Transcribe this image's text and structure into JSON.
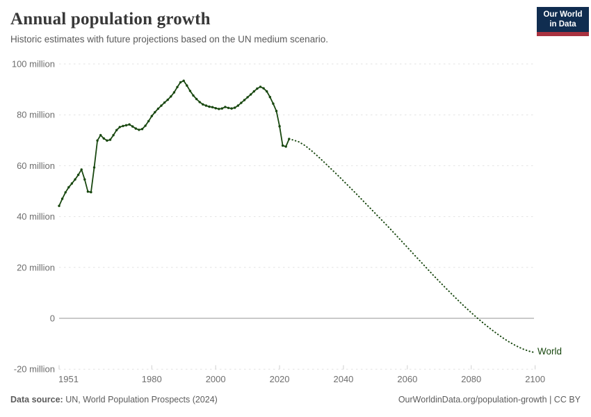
{
  "header": {
    "title": "Annual population growth",
    "subtitle": "Historic estimates with future projections based on the UN medium scenario."
  },
  "logo": {
    "line1": "Our World",
    "line2": "in Data",
    "bg_color": "#102d50",
    "bar_color": "#a93240"
  },
  "footer": {
    "source_label": "Data source:",
    "source_text": " UN, World Population Prospects (2024)",
    "link_text": "OurWorldinData.org/population-growth | CC BY"
  },
  "chart_data": {
    "type": "line",
    "title": "Annual population growth",
    "series_name": "World",
    "unit": "million",
    "line_color": "#18470f",
    "grid_color": "#e2e2e2",
    "zero_line_color": "#b8b8b8",
    "axis_text_color": "#6e6e6e",
    "xlim": [
      1951,
      2100
    ],
    "ylim": [
      -20,
      100
    ],
    "legend_position": "end-of-line",
    "grid": "horizontal-dashed",
    "yticks": [
      {
        "v": 100,
        "label": "100 million"
      },
      {
        "v": 80,
        "label": "80 million"
      },
      {
        "v": 60,
        "label": "60 million"
      },
      {
        "v": 40,
        "label": "40 million"
      },
      {
        "v": 20,
        "label": "20 million"
      },
      {
        "v": 0,
        "label": "0"
      },
      {
        "v": -20,
        "label": "-20 million"
      }
    ],
    "xticks": [
      {
        "year": 1951,
        "label": "1951",
        "align": "start"
      },
      {
        "year": 1980,
        "label": "1980"
      },
      {
        "year": 2000,
        "label": "2000"
      },
      {
        "year": 2020,
        "label": "2020"
      },
      {
        "year": 2040,
        "label": "2040"
      },
      {
        "year": 2060,
        "label": "2060"
      },
      {
        "year": 2080,
        "label": "2080"
      },
      {
        "year": 2100,
        "label": "2100"
      }
    ],
    "historic_style": "solid-with-markers",
    "projection_style": "dotted",
    "historic_points": [
      [
        1951,
        44.2
      ],
      [
        1952,
        47.0
      ],
      [
        1953,
        49.5
      ],
      [
        1954,
        51.5
      ],
      [
        1955,
        53.0
      ],
      [
        1956,
        54.6
      ],
      [
        1957,
        56.4
      ],
      [
        1958,
        58.5
      ],
      [
        1959,
        54.6
      ],
      [
        1960,
        49.8
      ],
      [
        1961,
        49.6
      ],
      [
        1962,
        59.3
      ],
      [
        1963,
        69.9
      ],
      [
        1964,
        72.0
      ],
      [
        1965,
        70.7
      ],
      [
        1966,
        69.9
      ],
      [
        1967,
        70.2
      ],
      [
        1968,
        72.0
      ],
      [
        1969,
        74.0
      ],
      [
        1970,
        75.2
      ],
      [
        1971,
        75.6
      ],
      [
        1972,
        75.9
      ],
      [
        1973,
        76.2
      ],
      [
        1974,
        75.4
      ],
      [
        1975,
        74.6
      ],
      [
        1976,
        74.1
      ],
      [
        1977,
        74.4
      ],
      [
        1978,
        75.7
      ],
      [
        1979,
        77.5
      ],
      [
        1980,
        79.5
      ],
      [
        1981,
        81.0
      ],
      [
        1982,
        82.4
      ],
      [
        1983,
        83.6
      ],
      [
        1984,
        84.8
      ],
      [
        1985,
        85.9
      ],
      [
        1986,
        87.2
      ],
      [
        1987,
        88.8
      ],
      [
        1988,
        90.9
      ],
      [
        1989,
        92.8
      ],
      [
        1990,
        93.4
      ],
      [
        1991,
        91.5
      ],
      [
        1992,
        89.4
      ],
      [
        1993,
        87.6
      ],
      [
        1994,
        86.2
      ],
      [
        1995,
        85.0
      ],
      [
        1996,
        84.1
      ],
      [
        1997,
        83.6
      ],
      [
        1998,
        83.2
      ],
      [
        1999,
        83.0
      ],
      [
        2000,
        82.6
      ],
      [
        2001,
        82.3
      ],
      [
        2002,
        82.5
      ],
      [
        2003,
        83.1
      ],
      [
        2004,
        82.7
      ],
      [
        2005,
        82.5
      ],
      [
        2006,
        82.8
      ],
      [
        2007,
        83.6
      ],
      [
        2008,
        84.7
      ],
      [
        2009,
        85.8
      ],
      [
        2010,
        86.9
      ],
      [
        2011,
        88.0
      ],
      [
        2012,
        89.2
      ],
      [
        2013,
        90.3
      ],
      [
        2014,
        91.0
      ],
      [
        2015,
        90.4
      ],
      [
        2016,
        89.2
      ],
      [
        2017,
        87.0
      ],
      [
        2018,
        84.4
      ],
      [
        2019,
        81.5
      ],
      [
        2020,
        75.5
      ],
      [
        2021,
        67.9
      ],
      [
        2022,
        67.5
      ],
      [
        2023,
        70.5
      ]
    ],
    "projection_points": [
      [
        2024,
        70.2
      ],
      [
        2026,
        69.4
      ],
      [
        2028,
        67.9
      ],
      [
        2030,
        65.9
      ],
      [
        2032,
        63.7
      ],
      [
        2034,
        61.3
      ],
      [
        2036,
        58.9
      ],
      [
        2038,
        56.5
      ],
      [
        2040,
        54.0
      ],
      [
        2042,
        51.5
      ],
      [
        2044,
        49.0
      ],
      [
        2046,
        46.4
      ],
      [
        2048,
        43.8
      ],
      [
        2050,
        41.2
      ],
      [
        2052,
        38.6
      ],
      [
        2054,
        36.0
      ],
      [
        2056,
        33.3
      ],
      [
        2058,
        30.6
      ],
      [
        2060,
        27.9
      ],
      [
        2062,
        25.2
      ],
      [
        2064,
        22.5
      ],
      [
        2066,
        19.8
      ],
      [
        2068,
        17.1
      ],
      [
        2070,
        14.5
      ],
      [
        2072,
        11.9
      ],
      [
        2074,
        9.4
      ],
      [
        2076,
        6.9
      ],
      [
        2078,
        4.5
      ],
      [
        2080,
        2.2
      ],
      [
        2082,
        0.0
      ],
      [
        2084,
        -2.1
      ],
      [
        2086,
        -4.1
      ],
      [
        2088,
        -6.0
      ],
      [
        2090,
        -7.8
      ],
      [
        2092,
        -9.4
      ],
      [
        2094,
        -10.8
      ],
      [
        2096,
        -12.0
      ],
      [
        2098,
        -12.9
      ],
      [
        2100,
        -13.5
      ]
    ]
  }
}
